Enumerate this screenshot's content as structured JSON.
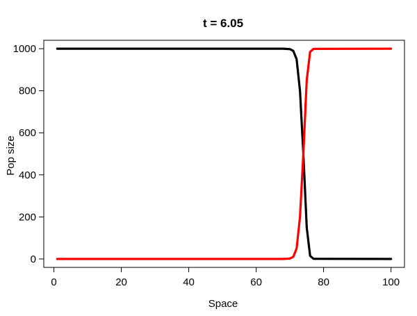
{
  "chart_data": {
    "type": "line",
    "title": "t = 6.05",
    "xlabel": "Space",
    "ylabel": "Pop size",
    "xlim": [
      -3,
      104
    ],
    "ylim": [
      -40,
      1040
    ],
    "xticks": [
      0,
      20,
      40,
      60,
      80,
      100
    ],
    "yticks": [
      0,
      200,
      400,
      600,
      800,
      1000
    ],
    "grid": false,
    "series": [
      {
        "color": "#000000",
        "x": [
          1,
          68,
          70,
          71,
          72,
          73,
          74,
          75,
          76,
          77,
          100
        ],
        "y": [
          1000,
          1000,
          998,
          990,
          950,
          800,
          500,
          150,
          15,
          1,
          0
        ]
      },
      {
        "color": "#ff0000",
        "x": [
          1,
          68,
          70,
          71,
          72,
          73,
          74,
          75,
          76,
          77,
          100
        ],
        "y": [
          0,
          0,
          2,
          10,
          50,
          200,
          500,
          850,
          985,
          999,
          1000
        ]
      }
    ]
  }
}
